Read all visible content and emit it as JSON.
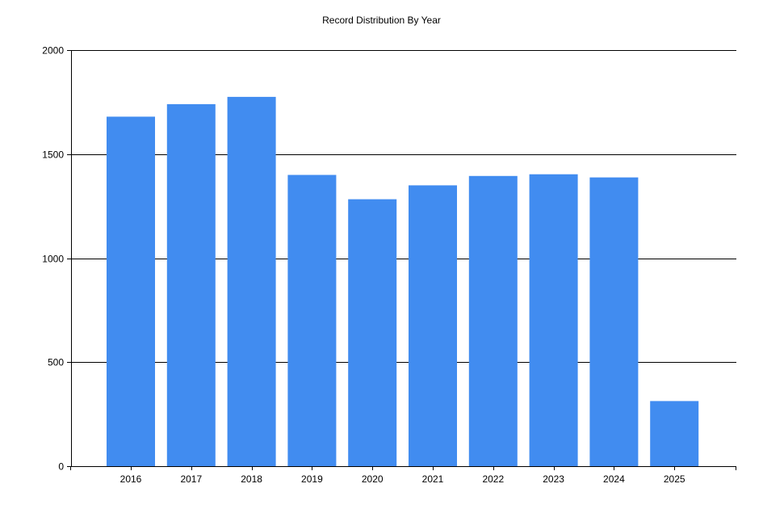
{
  "chart_data": {
    "type": "bar",
    "title": "Record Distribution By Year",
    "xlabel": "",
    "ylabel": "",
    "categories": [
      "2016",
      "2017",
      "2018",
      "2019",
      "2020",
      "2021",
      "2022",
      "2023",
      "2024",
      "2025"
    ],
    "values": [
      1680,
      1740,
      1775,
      1400,
      1283,
      1350,
      1395,
      1403,
      1388,
      313
    ],
    "ylim": [
      0,
      2000
    ],
    "yticks": [
      "0",
      "500",
      "1000",
      "1500",
      "2000"
    ],
    "grid": true,
    "legend": "none",
    "bar_color": "#418CF0"
  }
}
